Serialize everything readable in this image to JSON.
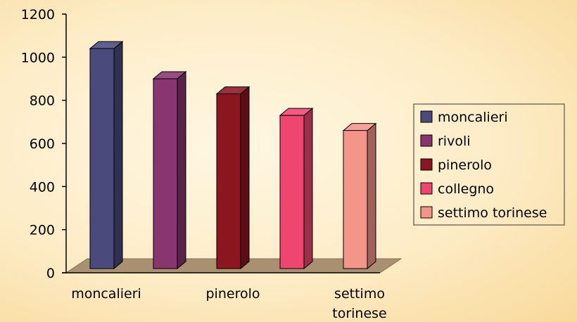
{
  "chart_data": {
    "type": "bar",
    "categories": [
      "moncalieri",
      "rivoli",
      "pinerolo",
      "collegno",
      "settimo torinese"
    ],
    "values": [
      1040,
      900,
      830,
      730,
      660
    ],
    "ylim": [
      0,
      1200
    ],
    "yticks": [
      0,
      200,
      400,
      600,
      800,
      1000,
      1200
    ],
    "x_tick_labels": [
      {
        "category": "moncalieri",
        "lines": [
          "moncalieri"
        ]
      },
      {
        "category": "pinerolo",
        "lines": [
          "pinerolo"
        ]
      },
      {
        "category": "settimo torinese",
        "lines": [
          "settimo",
          "torinese"
        ]
      }
    ],
    "colors": [
      "#4a4a7c",
      "#893570",
      "#8c1620",
      "#ef466f",
      "#f4958a"
    ],
    "legend": {
      "position": "right",
      "entries": [
        "moncalieri",
        "rivoli",
        "pinerolo",
        "collegno",
        "settimo torinese"
      ]
    },
    "style": "3d-column",
    "floor_color": "#a89070"
  }
}
